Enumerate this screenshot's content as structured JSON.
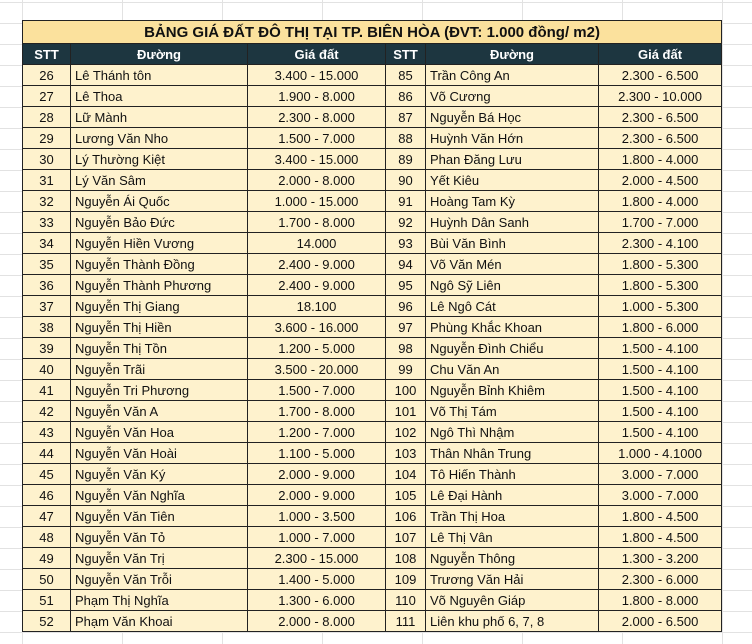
{
  "table": {
    "title": "BẢNG GIÁ ĐẤT ĐÔ THỊ TẠI TP. BIÊN HÒA (ĐVT: 1.000 đồng/ m2)",
    "header": [
      "STT",
      "Đường",
      "Giá đất",
      "STT",
      "Đường",
      "Giá đất"
    ],
    "rows": [
      [
        "26",
        "Lê Thánh tôn",
        "3.400 - 15.000",
        "85",
        "Trần Công An",
        "2.300 - 6.500"
      ],
      [
        "27",
        "Lê Thoa",
        "1.900 - 8.000",
        "86",
        "Võ Cương",
        "2.300 - 10.000"
      ],
      [
        "28",
        "Lữ Mành",
        "2.300 - 8.000",
        "87",
        "Nguyễn Bá Học",
        "2.300 - 6.500"
      ],
      [
        "29",
        "Lương Văn Nho",
        "1.500 - 7.000",
        "88",
        "Huỳnh Văn Hớn",
        "2.300 - 6.500"
      ],
      [
        "30",
        "Lý Thường Kiệt",
        "3.400 - 15.000",
        "89",
        "Phan Đăng Lưu",
        "1.800 - 4.000"
      ],
      [
        "31",
        "Lý Văn Sâm",
        "2.000 - 8.000",
        "90",
        "Yết Kiêu",
        "2.000 - 4.500"
      ],
      [
        "32",
        "Nguyễn Ái Quốc",
        "1.000 - 15.000",
        "91",
        "Hoàng Tam Kỳ",
        "1.800 - 4.000"
      ],
      [
        "33",
        "Nguyễn Bảo Đức",
        "1.700 - 8.000",
        "92",
        "Huỳnh Dân Sanh",
        "1.700 - 7.000"
      ],
      [
        "34",
        "Nguyễn Hiền Vương",
        "14.000",
        "93",
        "Bùi Văn Bình",
        "2.300 - 4.100"
      ],
      [
        "35",
        "Nguyễn Thành Đồng",
        "2.400 - 9.000",
        "94",
        "Võ Văn Mén",
        "1.800 - 5.300"
      ],
      [
        "36",
        "Nguyễn Thành Phương",
        "2.400 - 9.000",
        "95",
        "Ngô Sỹ Liên",
        "1.800 - 5.300"
      ],
      [
        "37",
        "Nguyễn Thị Giang",
        "18.100",
        "96",
        "Lê Ngô Cát",
        "1.000 - 5.300"
      ],
      [
        "38",
        "Nguyễn Thị Hiền",
        "3.600 - 16.000",
        "97",
        "Phùng Khắc Khoan",
        "1.800 - 6.000"
      ],
      [
        "39",
        "Nguyễn Thị Tồn",
        "1.200 - 5.000",
        "98",
        "Nguyễn Đình Chiểu",
        "1.500 - 4.100"
      ],
      [
        "40",
        "Nguyễn Trãi",
        "3.500 - 20.000",
        "99",
        "Chu Văn An",
        "1.500 - 4.100"
      ],
      [
        "41",
        "Nguyễn Tri Phương",
        "1.500 - 7.000",
        "100",
        "Nguyễn Bỉnh Khiêm",
        "1.500 - 4.100"
      ],
      [
        "42",
        "Nguyễn Văn A",
        "1.700 - 8.000",
        "101",
        "Võ Thị Tám",
        "1.500 - 4.100"
      ],
      [
        "43",
        "Nguyễn Văn Hoa",
        "1.200 - 7.000",
        "102",
        "Ngô Thì Nhậm",
        "1.500 - 4.100"
      ],
      [
        "44",
        "Nguyễn Văn Hoài",
        "1.100 - 5.000",
        "103",
        "Thân Nhân Trung",
        "1.000 - 4.1000"
      ],
      [
        "45",
        "Nguyễn Văn Ký",
        "2.000 - 9.000",
        "104",
        "Tô Hiến Thành",
        "3.000 - 7.000"
      ],
      [
        "46",
        "Nguyễn Văn Nghĩa",
        "2.000 - 9.000",
        "105",
        "Lê Đại Hành",
        "3.000 - 7.000"
      ],
      [
        "47",
        "Nguyễn Văn Tiên",
        "1.000 - 3.500",
        "106",
        "Trần Thị Hoa",
        "1.800 - 4.500"
      ],
      [
        "48",
        "Nguyễn Văn Tỏ",
        "1.000 - 7.000",
        "107",
        "Lê Thị Vân",
        "1.800 - 4.500"
      ],
      [
        "49",
        "Nguyễn Văn Trị",
        "2.300 - 15.000",
        "108",
        "Nguyễn Thông",
        "1.300 - 3.200"
      ],
      [
        "50",
        "Nguyễn Văn Trỗi",
        "1.400 - 5.000",
        "109",
        "Trương Văn Hải",
        "2.300 - 6.000"
      ],
      [
        "51",
        "Phạm Thị Nghĩa",
        "1.300 - 6.000",
        "110",
        "Võ Nguyên Giáp",
        "1.800 - 8.000"
      ],
      [
        "52",
        "Phạm Văn Khoai",
        "2.000 - 8.000",
        "111",
        "Liên khu phố 6, 7, 8",
        "2.000 - 6.500"
      ]
    ]
  }
}
